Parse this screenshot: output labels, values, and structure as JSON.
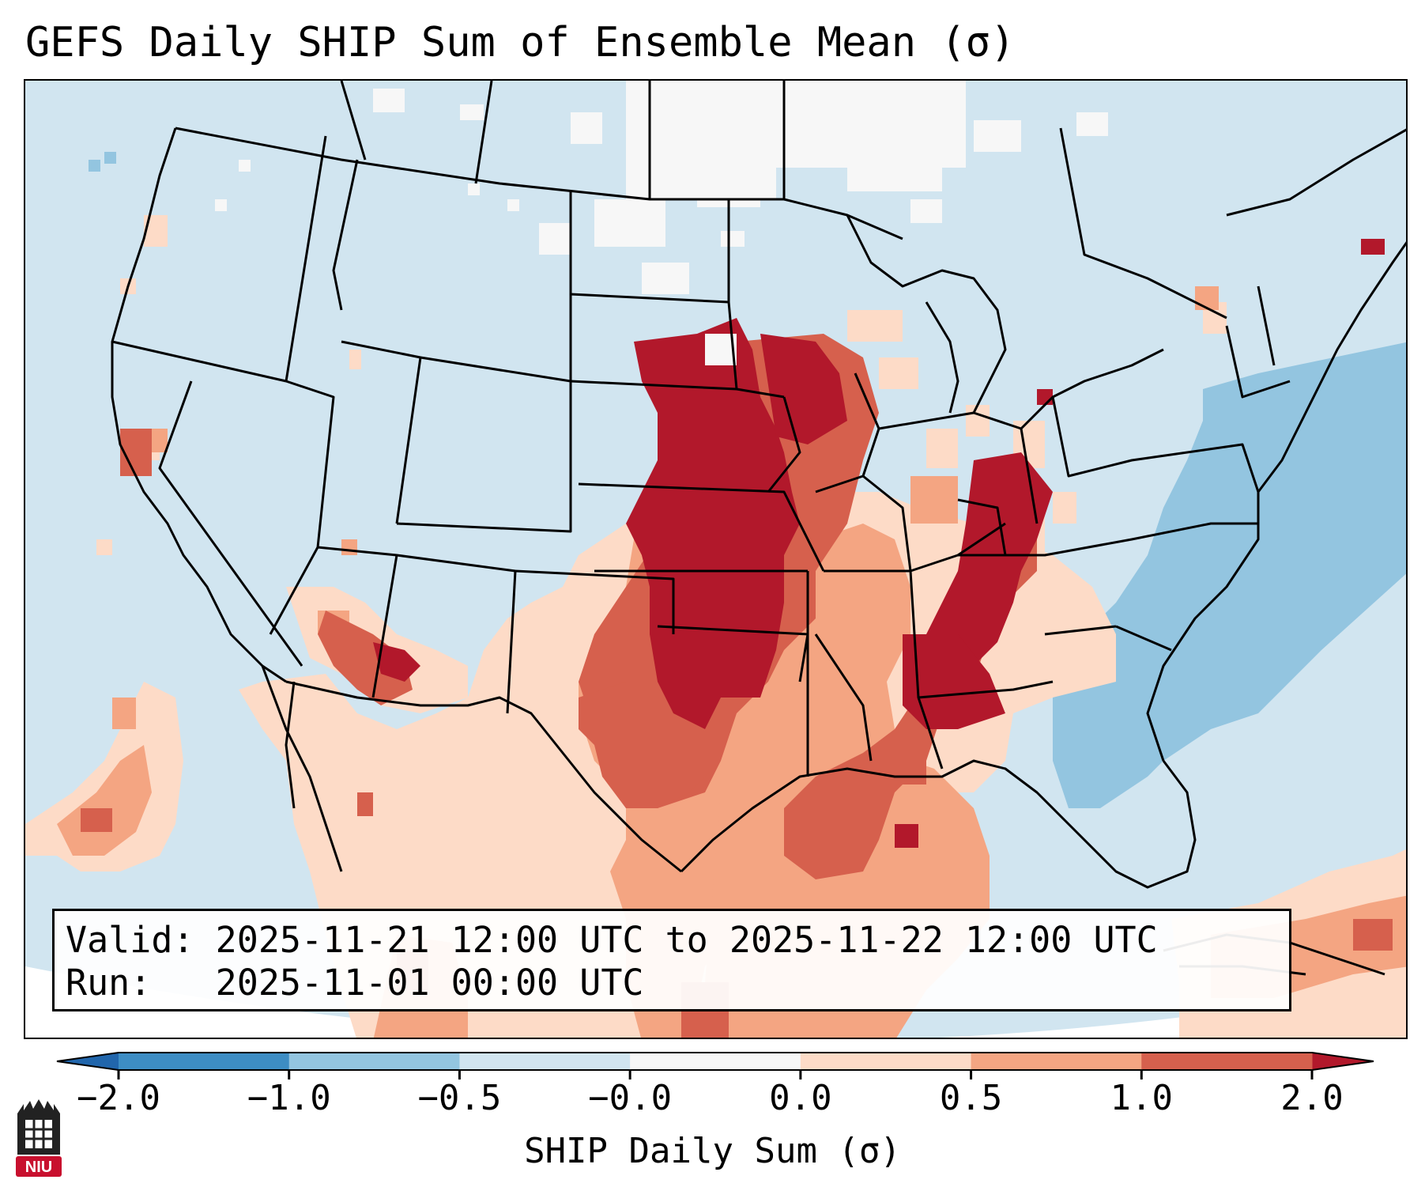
{
  "title": "GEFS Daily SHIP Sum of Ensemble Mean (σ)",
  "info": {
    "valid_label": "Valid:",
    "valid_text": "2025-11-21 12:00 UTC to 2025-11-22 12:00 UTC",
    "run_label": "Run:  ",
    "run_text": "2025-11-01 00:00 UTC"
  },
  "colorbar": {
    "label": "SHIP Daily Sum (σ)",
    "ticks": [
      "−2.0",
      "−1.0",
      "−0.5",
      "−0.0",
      "0.0",
      "0.5",
      "1.0",
      "2.0"
    ],
    "colors": [
      "#3d8dc4",
      "#93c5e0",
      "#d1e5f0",
      "#f7f7f7",
      "#fddbc7",
      "#f4a582",
      "#d6604d",
      "#b2182b"
    ],
    "extend": "both"
  },
  "legend_colors": {
    "below_min": "#2166ac",
    "above_max": "#b2182b",
    "outline": "#000000"
  },
  "map": {
    "region": "Contiguous United States",
    "projection": "Lambert conformal",
    "boundaries": "states, countries, coastlines"
  },
  "logo": {
    "text": "NIU",
    "name": "niu-logo-icon",
    "color": "#c8102e"
  }
}
